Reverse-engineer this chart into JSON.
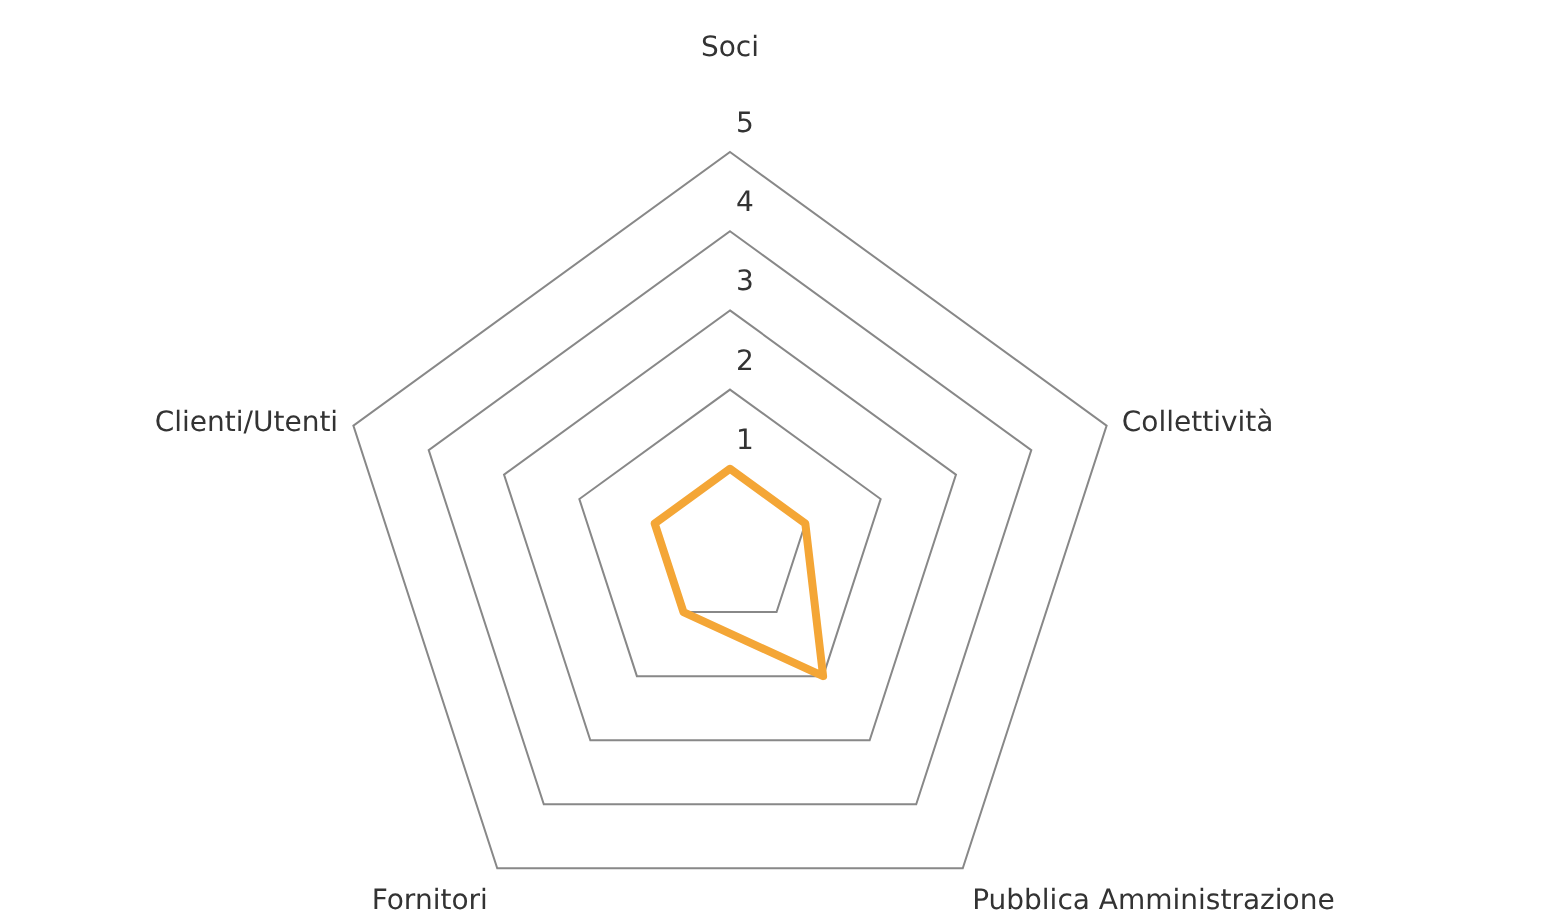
{
  "chart_data": {
    "type": "radar",
    "categories": [
      "Soci",
      "Collettività",
      "Pubblica Amministrazione",
      "Fornitori",
      "Clienti/Utenti"
    ],
    "series": [
      {
        "color": "#f4a636",
        "values": [
          1,
          1,
          2,
          1,
          1
        ]
      }
    ],
    "ylim": [
      0,
      5
    ],
    "yticks": [
      1,
      2,
      3,
      4,
      5
    ],
    "grid": true,
    "marker": "none"
  }
}
